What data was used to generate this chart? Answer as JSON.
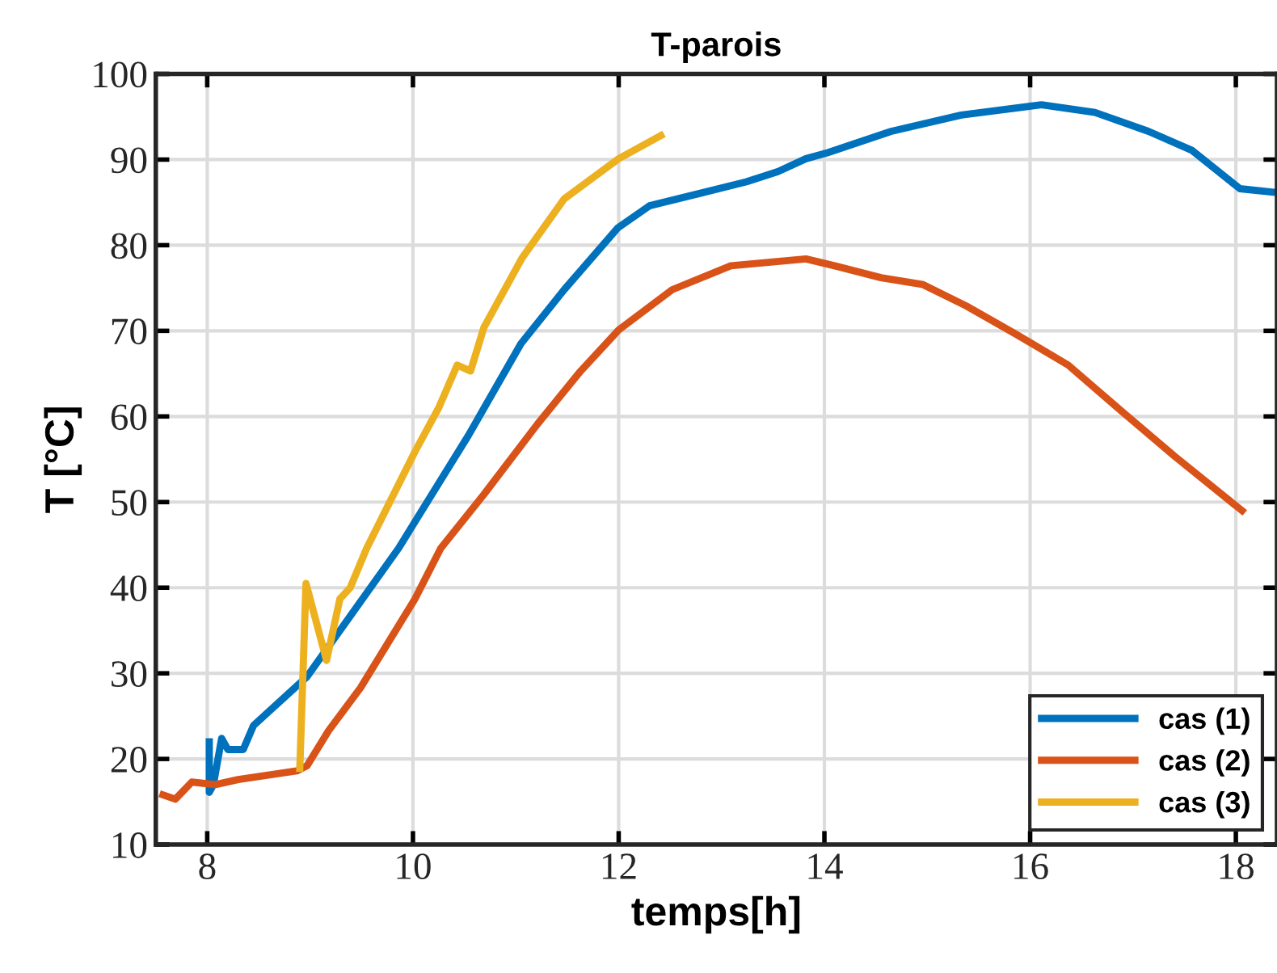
{
  "chart_data": {
    "type": "line",
    "title": "T-parois",
    "xlabel": "temps[h]",
    "ylabel": "T [°C]",
    "xlim": [
      7.5,
      18.4
    ],
    "xticks": [
      8,
      10,
      12,
      14,
      16,
      18
    ],
    "ylim": [
      10,
      100
    ],
    "yticks": [
      10,
      20,
      30,
      40,
      50,
      60,
      70,
      80,
      90,
      100
    ],
    "grid": true,
    "legend": "bottom right",
    "line_style": "solid",
    "series": [
      {
        "name": "cas (1)",
        "color": "#0072bd",
        "x": [
          8.02,
          8.02,
          8.06,
          8.14,
          8.2,
          8.35,
          8.45,
          8.97,
          9.86,
          10.54,
          11.05,
          11.47,
          11.99,
          12.3,
          12.77,
          13.24,
          13.55,
          13.82,
          14.03,
          14.65,
          15.33,
          16.11,
          16.63,
          17.15,
          17.57,
          18.04,
          18.35
        ],
        "values": [
          22,
          16.1,
          17,
          22.4,
          21.1,
          21.1,
          23.9,
          29.6,
          44.6,
          57.8,
          68.5,
          74.8,
          82,
          84.6,
          86,
          87.4,
          88.6,
          90.1,
          90.8,
          93.3,
          95.2,
          96.4,
          95.5,
          93.3,
          91.1,
          86.6,
          86.2
        ]
      },
      {
        "name": "cas (2)",
        "color": "#d95319",
        "x": [
          7.57,
          7.69,
          7.85,
          8.08,
          8.3,
          8.87,
          8.97,
          9.18,
          9.49,
          10.02,
          10.27,
          10.69,
          11.21,
          11.63,
          12,
          12.52,
          13.09,
          13.82,
          14.13,
          14.55,
          14.96,
          15.38,
          15.85,
          16.37,
          16.89,
          17.41,
          18.06
        ],
        "values": [
          15.8,
          15.3,
          17.3,
          17,
          17.6,
          18.6,
          19.2,
          23.3,
          28.3,
          38.7,
          44.6,
          50.9,
          59.1,
          65.3,
          70.1,
          74.8,
          77.6,
          78.4,
          77.5,
          76.2,
          75.4,
          72.9,
          69.7,
          66,
          60.6,
          55.3,
          49
        ]
      },
      {
        "name": "cas (3)",
        "color": "#edb120",
        "x": [
          8.9,
          8.96,
          9.16,
          9.29,
          9.39,
          9.55,
          10.02,
          10.25,
          10.43,
          10.56,
          10.69,
          11.06,
          11.47,
          12,
          12.41
        ],
        "values": [
          18.9,
          40.5,
          31.5,
          38.7,
          40,
          44.6,
          55.9,
          61,
          66,
          65.3,
          70.4,
          78.5,
          85.4,
          90.1,
          92.8
        ]
      }
    ]
  }
}
